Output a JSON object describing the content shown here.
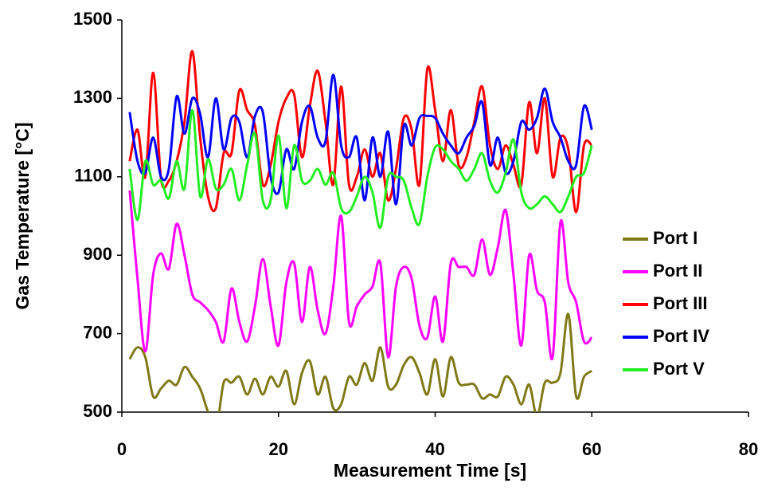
{
  "chart_data": {
    "type": "line",
    "xlabel": "Measurement Time [s]",
    "ylabel": "Gas Temperature [°C]",
    "x": [
      1,
      2,
      3,
      4,
      5,
      6,
      7,
      8,
      9,
      10,
      11,
      12,
      13,
      14,
      15,
      16,
      17,
      18,
      19,
      20,
      21,
      22,
      23,
      24,
      25,
      26,
      27,
      28,
      29,
      30,
      31,
      32,
      33,
      34,
      35,
      36,
      37,
      38,
      39,
      40,
      41,
      42,
      43,
      44,
      45,
      46,
      47,
      48,
      49,
      50,
      51,
      52,
      53,
      54,
      55,
      56,
      57,
      58,
      59,
      60
    ],
    "xlim": [
      0,
      80
    ],
    "xticks": [
      0,
      20,
      40,
      60,
      80
    ],
    "ylim": [
      500,
      1500
    ],
    "yticks": [
      500,
      700,
      900,
      1100,
      1300,
      1500
    ],
    "grid": false,
    "legend": "right",
    "series": [
      {
        "name": "Port I",
        "color": "#7f7a17",
        "values": [
          635,
          665,
          640,
          540,
          560,
          580,
          570,
          615,
          590,
          560,
          500,
          450,
          575,
          575,
          590,
          545,
          585,
          545,
          590,
          565,
          605,
          520,
          600,
          630,
          545,
          590,
          510,
          520,
          590,
          570,
          625,
          580,
          665,
          565,
          570,
          620,
          640,
          600,
          545,
          635,
          540,
          640,
          575,
          570,
          570,
          535,
          545,
          540,
          590,
          570,
          520,
          570,
          490,
          575,
          575,
          600,
          750,
          540,
          590,
          605
        ]
      },
      {
        "name": "Port II",
        "color": "#ff00ff",
        "values": [
          1065,
          840,
          655,
          850,
          905,
          865,
          980,
          900,
          800,
          780,
          760,
          730,
          680,
          815,
          730,
          680,
          770,
          890,
          770,
          670,
          830,
          880,
          730,
          870,
          760,
          700,
          820,
          1000,
          730,
          770,
          800,
          820,
          880,
          640,
          820,
          870,
          840,
          720,
          690,
          795,
          680,
          880,
          870,
          870,
          850,
          940,
          850,
          920,
          1015,
          850,
          670,
          900,
          810,
          780,
          640,
          985,
          830,
          780,
          680,
          690
        ]
      },
      {
        "name": "Port III",
        "color": "#ff0000",
        "values": [
          1140,
          1220,
          1100,
          1365,
          1095,
          1090,
          1140,
          1240,
          1420,
          1200,
          1050,
          1020,
          1160,
          1160,
          1320,
          1270,
          1230,
          1080,
          1130,
          1240,
          1300,
          1310,
          1150,
          1280,
          1370,
          1240,
          1080,
          1330,
          1080,
          1100,
          1170,
          1100,
          1160,
          1040,
          1120,
          1250,
          1220,
          1080,
          1375,
          1270,
          1140,
          1270,
          1130,
          1150,
          1240,
          1330,
          1180,
          1120,
          1180,
          1130,
          1080,
          1290,
          1160,
          1300,
          1100,
          1200,
          1170,
          1010,
          1180,
          1180
        ]
      },
      {
        "name": "Port IV",
        "color": "#0000ff",
        "values": [
          1265,
          1140,
          1110,
          1200,
          1100,
          1120,
          1305,
          1210,
          1300,
          1260,
          1150,
          1300,
          1170,
          1250,
          1240,
          1150,
          1255,
          1265,
          1100,
          1060,
          1170,
          1120,
          1240,
          1280,
          1200,
          1190,
          1360,
          1180,
          1150,
          1200,
          1040,
          1200,
          1100,
          1215,
          1030,
          1230,
          1180,
          1250,
          1255,
          1250,
          1210,
          1180,
          1160,
          1200,
          1230,
          1290,
          1130,
          1200,
          1110,
          1140,
          1240,
          1220,
          1250,
          1325,
          1240,
          1200,
          1140,
          1130,
          1280,
          1220
        ]
      },
      {
        "name": "Port V",
        "color": "#22ee22",
        "values": [
          1120,
          990,
          1140,
          1080,
          1090,
          1045,
          1140,
          1070,
          1270,
          1050,
          1145,
          1070,
          1080,
          1120,
          1040,
          1130,
          1210,
          1040,
          1040,
          1205,
          1020,
          1180,
          1090,
          1090,
          1120,
          1080,
          1110,
          1020,
          1010,
          1050,
          1100,
          1060,
          970,
          1100,
          1100,
          1090,
          1020,
          980,
          1100,
          1175,
          1170,
          1140,
          1120,
          1090,
          1120,
          1160,
          1090,
          1060,
          1110,
          1195,
          1060,
          1020,
          1030,
          1050,
          1030,
          1010,
          1050,
          1100,
          1110,
          1180
        ]
      }
    ]
  }
}
